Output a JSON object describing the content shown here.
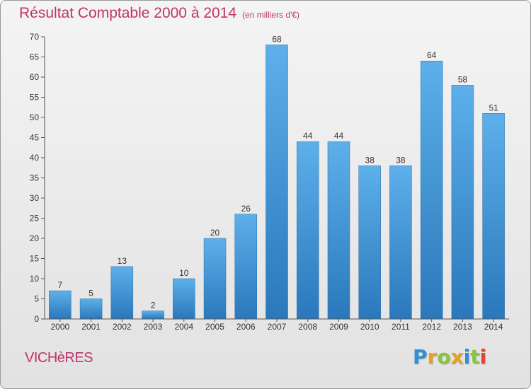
{
  "chart_data": {
    "type": "bar",
    "title": "Résultat Comptable 2000 à 2014",
    "subtitle": "(en milliers d'€)",
    "categories": [
      "2000",
      "2001",
      "2002",
      "2003",
      "2004",
      "2005",
      "2006",
      "2007",
      "2008",
      "2009",
      "2010",
      "2011",
      "2012",
      "2013",
      "2014"
    ],
    "values": [
      7,
      5,
      13,
      2,
      10,
      20,
      26,
      68,
      44,
      44,
      38,
      38,
      64,
      58,
      51
    ],
    "ylim": [
      0,
      70
    ],
    "yticks": [
      0,
      5,
      10,
      15,
      20,
      25,
      30,
      35,
      40,
      45,
      50,
      55,
      60,
      65,
      70
    ],
    "xlabel": "",
    "ylabel": "",
    "grid": false,
    "bar_color": "#3d94d6"
  },
  "commune": "VICHèRES",
  "logo": {
    "letters": [
      {
        "ch": "P",
        "color": "#2f8fd8"
      },
      {
        "ch": "r",
        "color": "#e8a020"
      },
      {
        "ch": "o",
        "color": "#8bc53f"
      },
      {
        "ch": "x",
        "color": "#e8a020"
      },
      {
        "ch": "i",
        "color": "#2f8fd8"
      },
      {
        "ch": "t",
        "color": "#8bc53f"
      },
      {
        "ch": "i",
        "color": "#e84030"
      }
    ]
  }
}
